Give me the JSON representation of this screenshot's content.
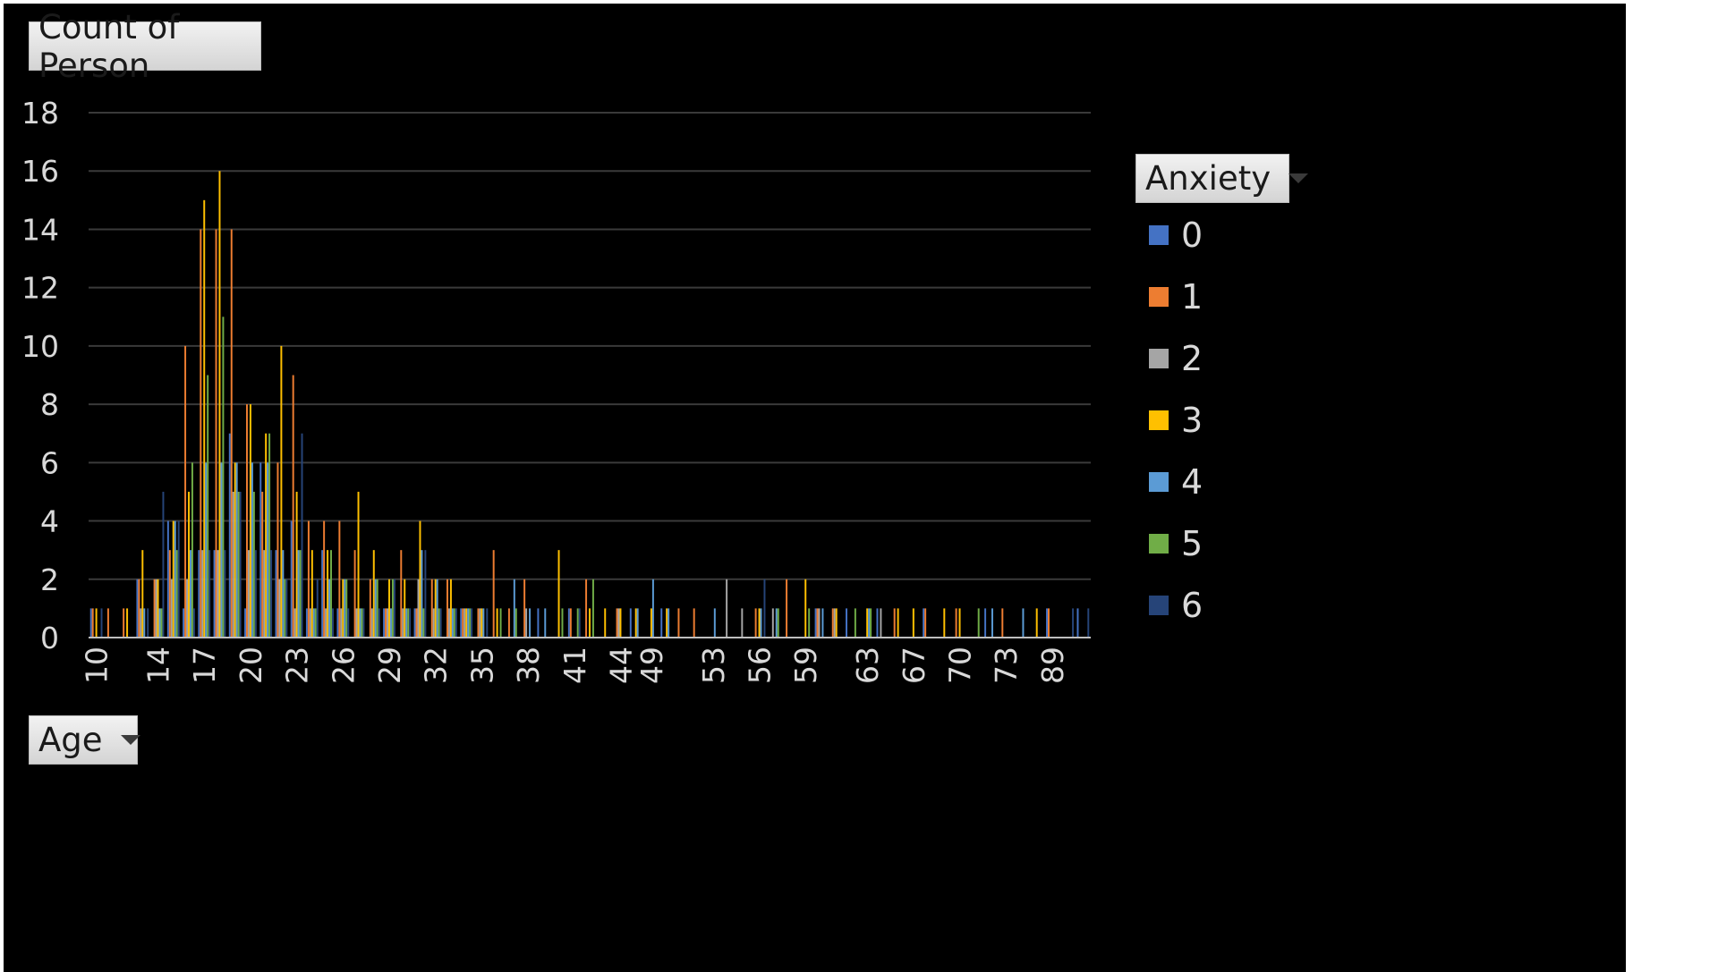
{
  "value_field_button": {
    "label": "Count of Person"
  },
  "axis_field_button": {
    "label": "Age"
  },
  "legend_field_button": {
    "label": "Anxiety"
  },
  "colors": {
    "background": "#000000",
    "gridline": "#3a3a3a",
    "axis_text": "#d9d9d9",
    "series": [
      "#4472c4",
      "#ed7d31",
      "#a5a5a5",
      "#ffc000",
      "#5b9bd5",
      "#70ad47",
      "#264478"
    ]
  },
  "chart_data": {
    "type": "bar",
    "title": "",
    "ylabel": "Count of Person",
    "xlabel": "Age",
    "ylim": [
      0,
      18
    ],
    "y_ticks": [
      0,
      2,
      4,
      6,
      8,
      10,
      12,
      14,
      16,
      18
    ],
    "grid": true,
    "legend_placement": "right",
    "legend_title": "Anxiety",
    "categories": [
      "10",
      "11",
      "12",
      "13",
      "14",
      "15",
      "16",
      "17",
      "18",
      "19",
      "20",
      "21",
      "22",
      "23",
      "24",
      "25",
      "26",
      "27",
      "28",
      "29",
      "30",
      "31",
      "32",
      "33",
      "34",
      "35",
      "36",
      "37",
      "38",
      "39",
      "40",
      "41",
      "42",
      "43",
      "44",
      "45",
      "49",
      "50",
      "51",
      "52",
      "53",
      "54",
      "55",
      "56",
      "57",
      "58",
      "59",
      "60",
      "61",
      "62",
      "63",
      "64",
      "65",
      "67",
      "68",
      "69",
      "70",
      "71",
      "72",
      "73",
      "76",
      "80",
      "89",
      "90",
      "94"
    ],
    "visible_tick_labels": [
      "10",
      "14",
      "17",
      "20",
      "23",
      "26",
      "29",
      "32",
      "35",
      "38",
      "41",
      "44",
      "49",
      "53",
      "56",
      "59",
      "63",
      "67",
      "70",
      "73",
      "89"
    ],
    "series": [
      {
        "name": "0",
        "values": [
          1,
          0,
          0,
          2,
          0,
          4,
          1,
          3,
          3,
          7,
          1,
          6,
          3,
          4,
          1,
          3,
          1,
          0,
          0,
          1,
          0,
          1,
          0,
          0,
          1,
          0,
          0,
          0,
          0,
          1,
          0,
          1,
          0,
          0,
          0,
          1,
          0,
          1,
          0,
          0,
          0,
          0,
          0,
          0,
          0,
          0,
          0,
          1,
          0,
          1,
          0,
          1,
          0,
          0,
          1,
          0,
          0,
          0,
          1,
          0,
          0,
          0,
          1,
          0,
          1
        ]
      },
      {
        "name": "1",
        "values": [
          1,
          1,
          1,
          2,
          2,
          3,
          10,
          14,
          14,
          14,
          8,
          5,
          6,
          9,
          4,
          4,
          4,
          3,
          2,
          1,
          3,
          1,
          2,
          2,
          1,
          1,
          3,
          1,
          2,
          0,
          0,
          1,
          2,
          0,
          1,
          0,
          0,
          0,
          1,
          1,
          0,
          0,
          0,
          1,
          0,
          2,
          0,
          1,
          1,
          0,
          0,
          0,
          1,
          0,
          1,
          0,
          1,
          0,
          0,
          1,
          0,
          0,
          1,
          0,
          0
        ]
      },
      {
        "name": "2",
        "values": [
          0,
          0,
          0,
          1,
          2,
          2,
          2,
          3,
          3,
          5,
          3,
          3,
          2,
          1,
          1,
          1,
          1,
          1,
          1,
          1,
          1,
          2,
          1,
          1,
          1,
          1,
          0,
          0,
          1,
          0,
          0,
          0,
          0,
          0,
          1,
          0,
          0,
          0,
          0,
          0,
          0,
          2,
          1,
          0,
          1,
          0,
          0,
          1,
          1,
          0,
          0,
          1,
          0,
          0,
          0,
          0,
          0,
          0,
          0,
          0,
          0,
          0,
          0,
          0,
          0
        ]
      },
      {
        "name": "3",
        "values": [
          1,
          0,
          1,
          3,
          2,
          4,
          5,
          15,
          16,
          6,
          8,
          7,
          10,
          5,
          3,
          3,
          2,
          5,
          3,
          2,
          2,
          4,
          2,
          2,
          1,
          1,
          1,
          0,
          0,
          0,
          3,
          0,
          1,
          1,
          1,
          1,
          1,
          1,
          0,
          0,
          0,
          0,
          0,
          1,
          0,
          0,
          2,
          0,
          1,
          0,
          1,
          0,
          1,
          1,
          0,
          1,
          1,
          0,
          0,
          0,
          0,
          1,
          0,
          0,
          0
        ]
      },
      {
        "name": "4",
        "values": [
          0,
          0,
          0,
          1,
          1,
          4,
          3,
          6,
          6,
          6,
          6,
          6,
          3,
          3,
          1,
          2,
          2,
          1,
          2,
          1,
          1,
          3,
          2,
          1,
          1,
          1,
          0,
          2,
          1,
          1,
          0,
          0,
          0,
          0,
          0,
          1,
          2,
          1,
          0,
          0,
          1,
          0,
          0,
          1,
          1,
          0,
          0,
          1,
          0,
          0,
          1,
          0,
          0,
          0,
          0,
          0,
          0,
          0,
          1,
          0,
          1,
          0,
          0,
          0,
          0
        ]
      },
      {
        "name": "5",
        "values": [
          0,
          0,
          0,
          0,
          1,
          3,
          6,
          9,
          11,
          5,
          5,
          7,
          2,
          3,
          1,
          3,
          2,
          1,
          2,
          2,
          1,
          1,
          1,
          1,
          1,
          0,
          1,
          1,
          0,
          0,
          1,
          1,
          2,
          0,
          0,
          0,
          0,
          0,
          0,
          0,
          0,
          0,
          0,
          0,
          1,
          0,
          1,
          0,
          0,
          1,
          1,
          0,
          0,
          0,
          0,
          0,
          0,
          1,
          0,
          0,
          0,
          0,
          0,
          0,
          0
        ]
      },
      {
        "name": "6",
        "values": [
          1,
          0,
          0,
          1,
          5,
          4,
          1,
          3,
          3,
          5,
          3,
          3,
          2,
          7,
          2,
          1,
          1,
          1,
          1,
          2,
          1,
          3,
          1,
          1,
          1,
          1,
          0,
          0,
          0,
          0,
          0,
          1,
          0,
          0,
          0,
          0,
          0,
          0,
          0,
          0,
          0,
          0,
          0,
          2,
          0,
          0,
          0,
          0,
          0,
          0,
          0,
          0,
          0,
          0,
          0,
          0,
          0,
          0,
          0,
          0,
          0,
          0,
          0,
          1,
          1
        ]
      }
    ]
  }
}
